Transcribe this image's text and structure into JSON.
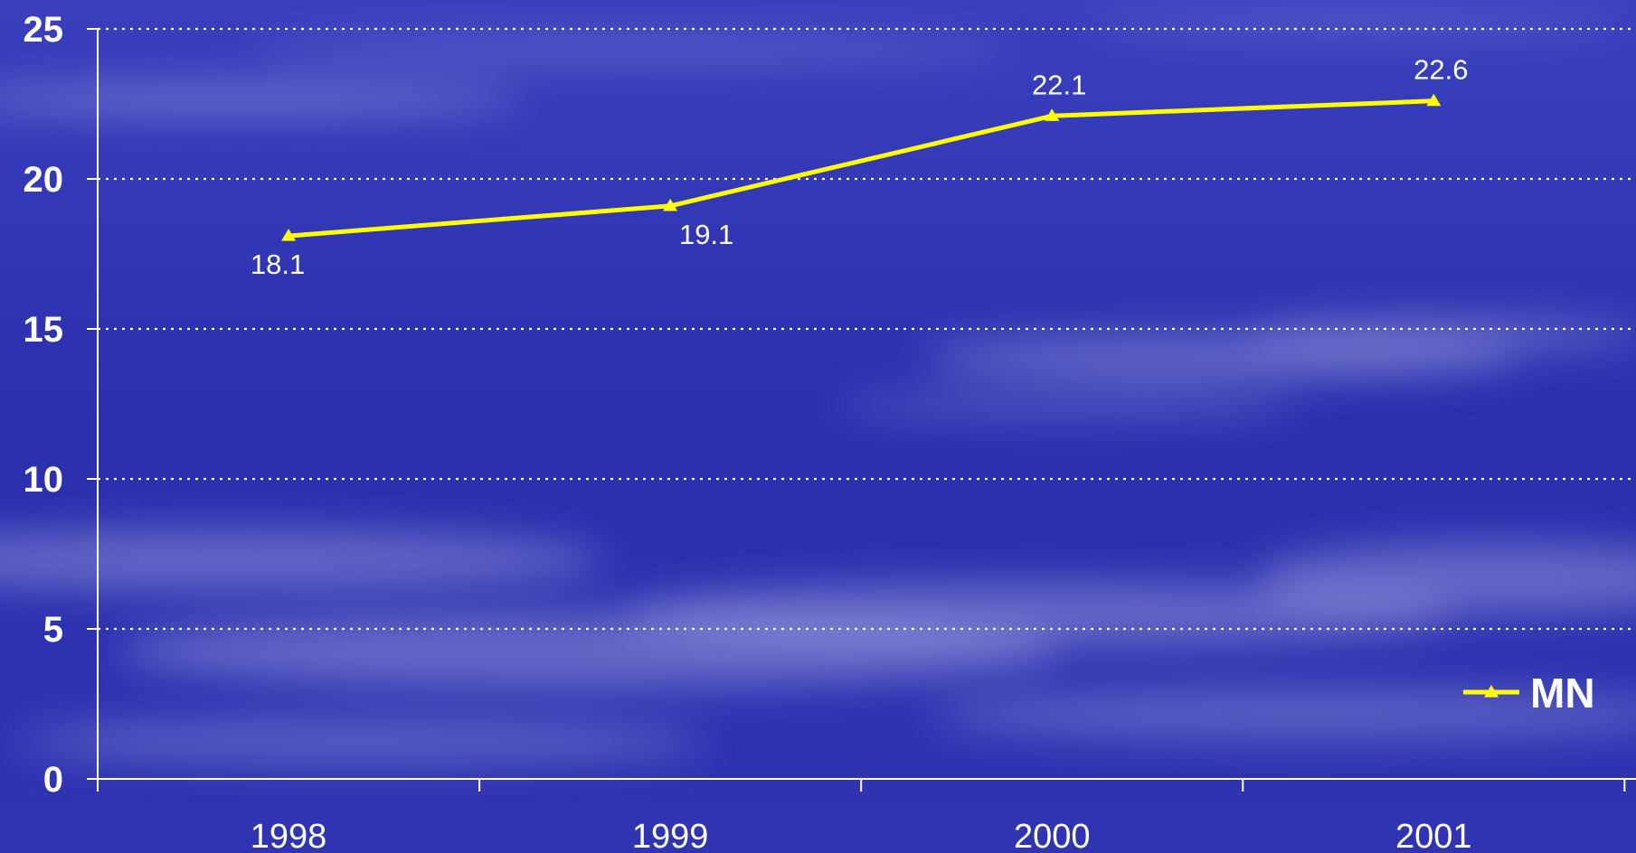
{
  "chart_data": {
    "type": "line",
    "title": "",
    "xlabel": "",
    "ylabel": "",
    "categories": [
      "1998",
      "1999",
      "2000",
      "2001"
    ],
    "series": [
      {
        "name": "MN",
        "values": [
          18.1,
          19.1,
          22.1,
          22.6
        ],
        "labels": [
          "18.1",
          "19.1",
          "22.1",
          "22.6"
        ],
        "color": "#ffff00",
        "marker": "triangle"
      }
    ],
    "ylim": [
      0,
      25
    ],
    "yticks": [
      0,
      5,
      10,
      15,
      20,
      25
    ],
    "ytick_labels": [
      "0",
      "5",
      "10",
      "15",
      "20",
      "25"
    ],
    "grid": "horizontal-dotted",
    "legend_position": "bottom-right"
  },
  "colors": {
    "background": "#3135b4",
    "axis": "#ffffff",
    "text": "#ffffff",
    "series": "#ffff00"
  }
}
